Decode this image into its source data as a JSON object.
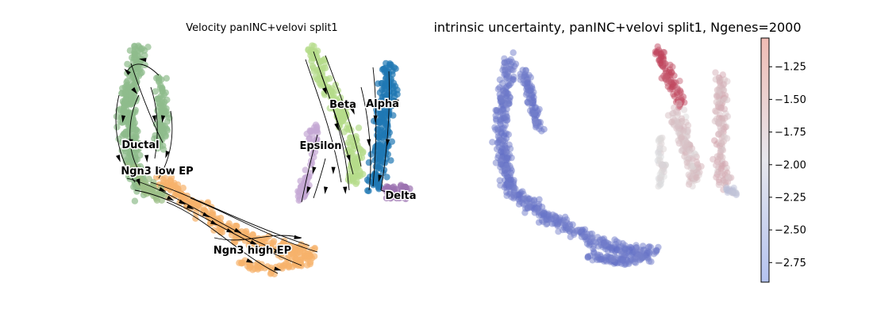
{
  "panels": [
    {
      "title": "Velocity panINC+velovi split1",
      "labels": [
        "Ductal",
        "Ngn3 low EP",
        "Ngn3 high EP",
        "Beta",
        "Alpha",
        "Epsilon",
        "Delta"
      ]
    },
    {
      "title": "intrinsic uncertainty, panINC+velovi split1, Ngenes=2000"
    }
  ],
  "colors": {
    "Ductal": "#8fbc8b",
    "Ngn3 low EP": "#9cbf88",
    "Ngn3 high EP": "#f6b26b",
    "Beta": "#b5dc8a",
    "Alpha": "#1f77b4",
    "Epsilon": "#c4a8d4",
    "Delta": "#9b72b0",
    "arrow": "#000000"
  },
  "chart_data": [
    {
      "type": "scatter",
      "title": "Velocity panINC+velovi split1",
      "categories": [
        "Ductal",
        "Ngn3 low EP",
        "Ngn3 high EP",
        "Beta",
        "Alpha",
        "Epsilon",
        "Delta"
      ],
      "overlay": "velocity stream arrows"
    },
    {
      "type": "scatter",
      "title": "intrinsic uncertainty, panINC+velovi split1, Ngenes=2000",
      "colormap": "coolwarm",
      "colorbar": {
        "ticks": [
          -1.25,
          -1.5,
          -1.75,
          -2.0,
          -2.25,
          -2.5,
          -2.75
        ],
        "tick_labels": [
          "−1.25",
          "−1.50",
          "−1.75",
          "−2.00",
          "−2.25",
          "−2.50",
          "−2.75"
        ],
        "range": [
          -2.9,
          -1.03
        ]
      }
    }
  ]
}
